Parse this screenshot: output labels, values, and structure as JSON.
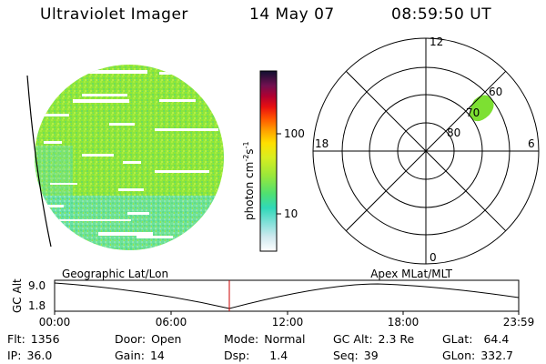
{
  "header": {
    "title": "Ultraviolet Imager",
    "date": "14 May 07",
    "time": "08:59:50 UT"
  },
  "colorbar": {
    "label": "photon cm",
    "label_sup1": "-2",
    "label_mid": "s",
    "label_sup2": "-1",
    "ticks": [
      "100",
      "10"
    ]
  },
  "polar": {
    "mlt_labels": [
      "12",
      "18",
      "6",
      "0"
    ],
    "lat_labels": [
      "60",
      "70",
      "80"
    ]
  },
  "timeline": {
    "y_axis_title": "GC Alt",
    "y_ticks": [
      "9.0",
      "1.8"
    ],
    "left_caption": "Geographic Lat/Lon",
    "right_caption": "Apex  MLat/MLT",
    "x_ticks": [
      "00:00",
      "06:00",
      "12:00",
      "18:00",
      "23:59"
    ]
  },
  "status": {
    "flt": {
      "label": "Flt:",
      "value": "1356"
    },
    "ip": {
      "label": "IP:",
      "value": "36.0"
    },
    "door": {
      "label": "Door:",
      "value": "Open"
    },
    "gain": {
      "label": "Gain:",
      "value": "14"
    },
    "mode": {
      "label": "Mode:",
      "value": "Normal"
    },
    "dsp": {
      "label": "Dsp:",
      "value": "1.4"
    },
    "gcalt": {
      "label": "GC Alt:",
      "value": "2.3 Re"
    },
    "seq": {
      "label": "Seq:",
      "value": "39"
    },
    "glat": {
      "label": "GLat:",
      "value": "64.4"
    },
    "glon": {
      "label": "GLon:",
      "value": "332.7"
    }
  },
  "colors": {
    "disk_green": "#8ee63a",
    "disk_cyan": "#5fe6c8",
    "aurora_green": "#7de032",
    "marker_red": "#cc0000"
  }
}
